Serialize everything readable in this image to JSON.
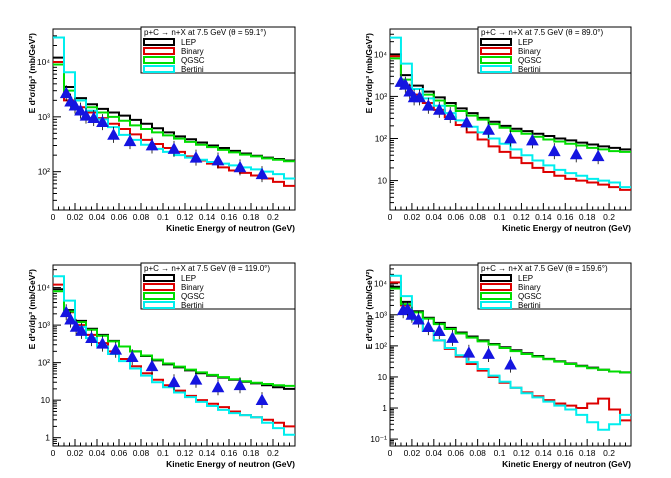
{
  "colors": {
    "LEP": "#000000",
    "Binary": "#dd0000",
    "QGSC": "#00dd00",
    "Bertini": "#00eeee",
    "data": "#1515e0"
  },
  "chart_data": [
    {
      "type": "line",
      "title": "p+C → n+X at 7.5 GeV (θ =  59.1°)",
      "xlabel": "Kinetic Energy of neutron (GeV)",
      "ylabel": "E d³σ/dp³ (mb/GeV²)",
      "xlim": [
        0,
        0.22
      ],
      "ylim": [
        20,
        40000
      ],
      "yscale": "log",
      "xticks": [
        "0",
        "0.02",
        "0.04",
        "0.06",
        "0.08",
        "0.1",
        "0.12",
        "0.14",
        "0.16",
        "0.18",
        "0.2"
      ],
      "yticks": [
        {
          "v": 100,
          "label": "10²"
        },
        {
          "v": 1000,
          "label": "10³"
        },
        {
          "v": 10000,
          "label": "10⁴"
        }
      ],
      "legend": [
        "LEP",
        "Binary",
        "QGSC",
        "Bertini"
      ],
      "bin_edges": [
        0,
        0.01,
        0.02,
        0.03,
        0.04,
        0.05,
        0.06,
        0.07,
        0.08,
        0.09,
        0.1,
        0.11,
        0.12,
        0.13,
        0.14,
        0.15,
        0.16,
        0.17,
        0.18,
        0.19,
        0.2,
        0.21,
        0.22
      ],
      "series": [
        {
          "name": "LEP",
          "values": [
            12000,
            3500,
            2200,
            1700,
            1400,
            1200,
            1050,
            880,
            750,
            620,
            520,
            440,
            390,
            340,
            300,
            270,
            240,
            215,
            195,
            180,
            170,
            160
          ]
        },
        {
          "name": "Binary",
          "values": [
            10000,
            2000,
            1500,
            1200,
            950,
            750,
            600,
            480,
            380,
            320,
            270,
            230,
            190,
            160,
            140,
            120,
            105,
            95,
            85,
            75,
            65,
            55
          ]
        },
        {
          "name": "QGSC",
          "values": [
            9000,
            3000,
            2000,
            1500,
            1200,
            1000,
            850,
            700,
            600,
            520,
            460,
            400,
            350,
            310,
            280,
            250,
            225,
            205,
            190,
            175,
            165,
            155
          ]
        },
        {
          "name": "Bertini",
          "values": [
            28000,
            6500,
            2000,
            1300,
            900,
            650,
            470,
            380,
            310,
            260,
            230,
            200,
            180,
            165,
            150,
            140,
            130,
            120,
            110,
            100,
            90,
            75
          ]
        }
      ],
      "points": [
        {
          "x": 0.012,
          "y": 2700
        },
        {
          "x": 0.016,
          "y": 1900
        },
        {
          "x": 0.02,
          "y": 1600
        },
        {
          "x": 0.025,
          "y": 1300
        },
        {
          "x": 0.03,
          "y": 1050
        },
        {
          "x": 0.037,
          "y": 950
        },
        {
          "x": 0.045,
          "y": 800
        },
        {
          "x": 0.055,
          "y": 470
        },
        {
          "x": 0.07,
          "y": 360
        },
        {
          "x": 0.09,
          "y": 300
        },
        {
          "x": 0.11,
          "y": 260
        },
        {
          "x": 0.13,
          "y": 180
        },
        {
          "x": 0.15,
          "y": 160
        },
        {
          "x": 0.17,
          "y": 120
        },
        {
          "x": 0.19,
          "y": 90
        }
      ]
    },
    {
      "type": "line",
      "title": "p+C → n+X at 7.5 GeV (θ =  89.0°)",
      "xlabel": "Kinetic Energy of neutron (GeV)",
      "ylabel": "E d³σ/dp³ (mb/GeV²)",
      "xlim": [
        0,
        0.22
      ],
      "ylim": [
        2,
        40000
      ],
      "yscale": "log",
      "xticks": [
        "0",
        "0.02",
        "0.04",
        "0.06",
        "0.08",
        "0.1",
        "0.12",
        "0.14",
        "0.16",
        "0.18",
        "0.2"
      ],
      "yticks": [
        {
          "v": 10,
          "label": "10"
        },
        {
          "v": 100,
          "label": "10²"
        },
        {
          "v": 1000,
          "label": "10³"
        },
        {
          "v": 10000,
          "label": "10⁴"
        }
      ],
      "legend": [
        "LEP",
        "Binary",
        "QGSC",
        "Bertini"
      ],
      "bin_edges": [
        0,
        0.01,
        0.02,
        0.03,
        0.04,
        0.05,
        0.06,
        0.07,
        0.08,
        0.09,
        0.1,
        0.11,
        0.12,
        0.13,
        0.14,
        0.15,
        0.16,
        0.17,
        0.18,
        0.19,
        0.2,
        0.21,
        0.22
      ],
      "series": [
        {
          "name": "LEP",
          "values": [
            10000,
            3200,
            1800,
            1300,
            950,
            700,
            520,
            400,
            310,
            250,
            200,
            170,
            150,
            130,
            115,
            100,
            90,
            80,
            72,
            65,
            60,
            55
          ]
        },
        {
          "name": "Binary",
          "values": [
            9000,
            1800,
            1100,
            700,
            480,
            320,
            210,
            140,
            95,
            65,
            48,
            35,
            26,
            20,
            16,
            13,
            11,
            10,
            9,
            8,
            7,
            6
          ]
        },
        {
          "name": "QGSC",
          "values": [
            8000,
            2500,
            1500,
            1100,
            800,
            600,
            450,
            350,
            280,
            220,
            180,
            150,
            130,
            110,
            95,
            85,
            75,
            68,
            60,
            55,
            50,
            48
          ]
        },
        {
          "name": "Bertini",
          "values": [
            25000,
            6000,
            1500,
            900,
            600,
            400,
            270,
            190,
            140,
            100,
            75,
            55,
            40,
            30,
            23,
            18,
            15,
            13,
            11,
            10,
            9,
            7
          ]
        }
      ],
      "points": [
        {
          "x": 0.01,
          "y": 2200
        },
        {
          "x": 0.014,
          "y": 1900
        },
        {
          "x": 0.018,
          "y": 1300
        },
        {
          "x": 0.022,
          "y": 950
        },
        {
          "x": 0.027,
          "y": 950
        },
        {
          "x": 0.035,
          "y": 600
        },
        {
          "x": 0.045,
          "y": 480
        },
        {
          "x": 0.055,
          "y": 360
        },
        {
          "x": 0.07,
          "y": 240
        },
        {
          "x": 0.09,
          "y": 160
        },
        {
          "x": 0.11,
          "y": 100
        },
        {
          "x": 0.13,
          "y": 90
        },
        {
          "x": 0.15,
          "y": 50
        },
        {
          "x": 0.17,
          "y": 42
        },
        {
          "x": 0.19,
          "y": 38
        }
      ]
    },
    {
      "type": "line",
      "title": "p+C → n+X at 7.5 GeV (θ = 119.0°)",
      "xlabel": "Kinetic Energy of neutron (GeV)",
      "ylabel": "E d³σ/dp³ (mb/GeV²)",
      "xlim": [
        0,
        0.22
      ],
      "ylim": [
        0.6,
        40000
      ],
      "yscale": "log",
      "xticks": [
        "0",
        "0.02",
        "0.04",
        "0.06",
        "0.08",
        "0.1",
        "0.12",
        "0.14",
        "0.16",
        "0.18",
        "0.2"
      ],
      "yticks": [
        {
          "v": 1,
          "label": "1"
        },
        {
          "v": 10,
          "label": "10"
        },
        {
          "v": 100,
          "label": "10²"
        },
        {
          "v": 1000,
          "label": "10³"
        },
        {
          "v": 10000,
          "label": "10⁴"
        }
      ],
      "legend": [
        "LEP",
        "Binary",
        "QGSC",
        "Bertini"
      ],
      "bin_edges": [
        0,
        0.01,
        0.02,
        0.03,
        0.04,
        0.05,
        0.06,
        0.07,
        0.08,
        0.09,
        0.1,
        0.11,
        0.12,
        0.13,
        0.14,
        0.15,
        0.16,
        0.17,
        0.18,
        0.19,
        0.2,
        0.21,
        0.22
      ],
      "series": [
        {
          "name": "LEP",
          "values": [
            9000,
            2500,
            1300,
            800,
            550,
            380,
            270,
            200,
            150,
            115,
            90,
            75,
            62,
            52,
            45,
            40,
            35,
            31,
            28,
            25,
            22,
            20
          ]
        },
        {
          "name": "Binary",
          "values": [
            12000,
            2200,
            1000,
            550,
            330,
            200,
            125,
            80,
            52,
            35,
            25,
            18,
            13,
            10,
            8,
            6.5,
            5,
            4,
            3.5,
            3,
            2.5,
            2
          ]
        },
        {
          "name": "QGSC",
          "values": [
            8000,
            2300,
            1200,
            750,
            520,
            370,
            270,
            200,
            155,
            120,
            95,
            78,
            65,
            55,
            47,
            41,
            36,
            32,
            29,
            27,
            25,
            24
          ]
        },
        {
          "name": "Bertini",
          "values": [
            20000,
            4500,
            900,
            450,
            270,
            170,
            110,
            70,
            45,
            30,
            22,
            16,
            12,
            9,
            7,
            5.5,
            4.5,
            4,
            3.5,
            2.5,
            1.8,
            1.2
          ]
        }
      ],
      "points": [
        {
          "x": 0.012,
          "y": 2200
        },
        {
          "x": 0.016,
          "y": 1400
        },
        {
          "x": 0.021,
          "y": 900
        },
        {
          "x": 0.026,
          "y": 700
        },
        {
          "x": 0.035,
          "y": 450
        },
        {
          "x": 0.045,
          "y": 320
        },
        {
          "x": 0.057,
          "y": 220
        },
        {
          "x": 0.072,
          "y": 140
        },
        {
          "x": 0.09,
          "y": 80
        },
        {
          "x": 0.11,
          "y": 30
        },
        {
          "x": 0.13,
          "y": 35
        },
        {
          "x": 0.15,
          "y": 22
        },
        {
          "x": 0.17,
          "y": 25
        },
        {
          "x": 0.19,
          "y": 10
        }
      ]
    },
    {
      "type": "line",
      "title": "p+C → n+X at 7.5 GeV (θ = 159.6°)",
      "xlabel": "Kinetic Energy of neutron (GeV)",
      "ylabel": "E d³σ/dp³ (mb/GeV²)",
      "xlim": [
        0,
        0.22
      ],
      "ylim": [
        0.06,
        40000
      ],
      "yscale": "log",
      "xticks": [
        "0",
        "0.02",
        "0.04",
        "0.06",
        "0.08",
        "0.1",
        "0.12",
        "0.14",
        "0.16",
        "0.18",
        "0.2"
      ],
      "yticks": [
        {
          "v": 0.1,
          "label": "10⁻¹"
        },
        {
          "v": 1,
          "label": "1"
        },
        {
          "v": 10,
          "label": "10"
        },
        {
          "v": 100,
          "label": "10²"
        },
        {
          "v": 1000,
          "label": "10³"
        },
        {
          "v": 10000,
          "label": "10⁴"
        }
      ],
      "legend": [
        "LEP",
        "Binary",
        "QGSC",
        "Bertini"
      ],
      "bin_edges": [
        0,
        0.01,
        0.02,
        0.03,
        0.04,
        0.05,
        0.06,
        0.07,
        0.08,
        0.09,
        0.1,
        0.11,
        0.12,
        0.13,
        0.14,
        0.15,
        0.16,
        0.17,
        0.18,
        0.19,
        0.2,
        0.21,
        0.22
      ],
      "series": [
        {
          "name": "LEP",
          "values": [
            8000,
            2600,
            1300,
            800,
            550,
            380,
            270,
            200,
            150,
            115,
            90,
            72,
            58,
            47,
            38,
            32,
            27,
            23,
            20,
            17,
            15,
            14
          ]
        },
        {
          "name": "Binary",
          "values": [
            11000,
            2000,
            700,
            300,
            150,
            80,
            45,
            26,
            16,
            10,
            6.5,
            4.5,
            3.2,
            2.4,
            1.8,
            1.4,
            1.2,
            1.0,
            1.4,
            2.0,
            0.9,
            0.4
          ]
        },
        {
          "name": "QGSC",
          "values": [
            7000,
            2200,
            1200,
            750,
            500,
            350,
            250,
            185,
            140,
            110,
            85,
            68,
            55,
            45,
            37,
            31,
            26,
            22,
            19,
            17,
            15,
            14
          ]
        },
        {
          "name": "Bertini",
          "values": [
            18000,
            4000,
            700,
            300,
            150,
            85,
            50,
            30,
            18,
            11,
            7,
            4.5,
            3,
            2.2,
            1.6,
            1.2,
            0.9,
            0.6,
            0.35,
            0.2,
            0.3,
            0.6
          ]
        }
      ],
      "points": [
        {
          "x": 0.012,
          "y": 1400
        },
        {
          "x": 0.016,
          "y": 1500
        },
        {
          "x": 0.02,
          "y": 1000
        },
        {
          "x": 0.026,
          "y": 700
        },
        {
          "x": 0.035,
          "y": 400
        },
        {
          "x": 0.045,
          "y": 300
        },
        {
          "x": 0.057,
          "y": 180
        },
        {
          "x": 0.072,
          "y": 60
        },
        {
          "x": 0.09,
          "y": 55
        },
        {
          "x": 0.11,
          "y": 25
        }
      ]
    }
  ]
}
